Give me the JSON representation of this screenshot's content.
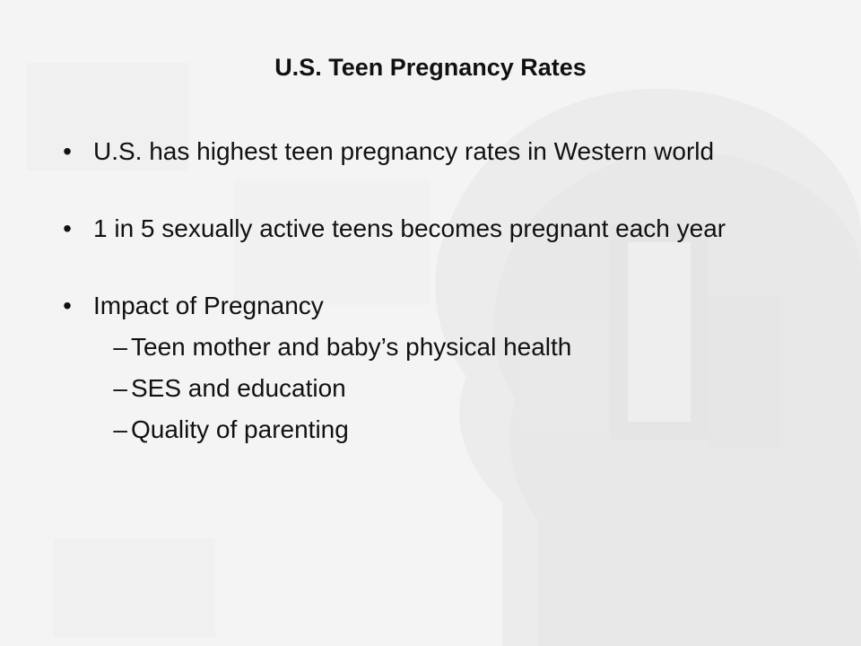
{
  "slide": {
    "title": "U.S. Teen Pregnancy Rates",
    "bullets": [
      {
        "marker": "•",
        "text": "U.S. has highest teen pregnancy rates in Western world"
      },
      {
        "marker": "•",
        "text": "1 in 5 sexually active teens becomes pregnant each year"
      },
      {
        "marker": "•",
        "text": "Impact of Pregnancy",
        "subitems": [
          {
            "marker": "–",
            "text": "Teen mother and baby’s physical health"
          },
          {
            "marker": "–",
            "text": "SES and education"
          },
          {
            "marker": "–",
            "text": "Quality of parenting"
          }
        ]
      }
    ]
  },
  "colors": {
    "background": "#f4f4f4",
    "text": "#111111",
    "watermark": "#e6e6e6"
  }
}
